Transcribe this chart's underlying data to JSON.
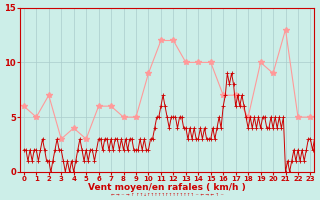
{
  "bg_color": "#cceee8",
  "grid_color": "#aacccc",
  "line_dark_color": "#cc0000",
  "line_light_color": "#ff9999",
  "ylim": [
    0,
    15
  ],
  "yticks": [
    0,
    5,
    10,
    15
  ],
  "xlabel": "Vent moyen/en rafales ( km/h )",
  "xlabel_color": "#cc0000",
  "tick_color": "#cc0000",
  "spine_color": "#cc0000",
  "hours_labels": [
    0,
    1,
    2,
    3,
    4,
    5,
    6,
    7,
    8,
    9,
    10,
    11,
    12,
    13,
    14,
    15,
    16,
    17,
    18,
    19,
    20,
    21,
    22,
    23
  ],
  "rafales_x": [
    0,
    1,
    2,
    3,
    4,
    5,
    6,
    7,
    8,
    9,
    10,
    11,
    12,
    13,
    14,
    15,
    16,
    17,
    18,
    19,
    20,
    21,
    22,
    23
  ],
  "rafales_y": [
    6,
    5,
    7,
    3,
    4,
    3,
    6,
    6,
    5,
    5,
    9,
    12,
    12,
    10,
    10,
    10,
    7,
    7,
    5,
    10,
    9,
    13,
    5,
    5
  ],
  "moyen_x": [
    0.0,
    0.17,
    0.33,
    0.5,
    0.67,
    0.83,
    1.0,
    1.17,
    1.33,
    1.5,
    1.67,
    1.83,
    2.0,
    2.17,
    2.33,
    2.5,
    2.67,
    2.83,
    3.0,
    3.17,
    3.33,
    3.5,
    3.67,
    3.83,
    4.0,
    4.17,
    4.33,
    4.5,
    4.67,
    4.83,
    5.0,
    5.17,
    5.33,
    5.5,
    5.67,
    5.83,
    6.0,
    6.17,
    6.33,
    6.5,
    6.67,
    6.83,
    7.0,
    7.17,
    7.33,
    7.5,
    7.67,
    7.83,
    8.0,
    8.17,
    8.33,
    8.5,
    8.67,
    8.83,
    9.0,
    9.17,
    9.33,
    9.5,
    9.67,
    9.83,
    10.0,
    10.17,
    10.33,
    10.5,
    10.67,
    10.83,
    11.0,
    11.17,
    11.33,
    11.5,
    11.67,
    11.83,
    12.0,
    12.17,
    12.33,
    12.5,
    12.67,
    12.83,
    13.0,
    13.17,
    13.33,
    13.5,
    13.67,
    13.83,
    14.0,
    14.17,
    14.33,
    14.5,
    14.67,
    14.83,
    15.0,
    15.17,
    15.33,
    15.5,
    15.67,
    15.83,
    16.0,
    16.17,
    16.33,
    16.5,
    16.67,
    16.83,
    17.0,
    17.17,
    17.33,
    17.5,
    17.67,
    17.83,
    18.0,
    18.17,
    18.33,
    18.5,
    18.67,
    18.83,
    19.0,
    19.17,
    19.33,
    19.5,
    19.67,
    19.83,
    20.0,
    20.17,
    20.33,
    20.5,
    20.67,
    20.83,
    21.0,
    21.17,
    21.33,
    21.5,
    21.67,
    21.83,
    22.0,
    22.17,
    22.33,
    22.5,
    22.67,
    22.83,
    23.0,
    23.17,
    23.33,
    23.5,
    23.67,
    23.83
  ],
  "moyen_y": [
    2,
    2,
    1,
    2,
    1,
    2,
    2,
    1,
    2,
    3,
    2,
    1,
    1,
    0,
    1,
    2,
    3,
    2,
    2,
    1,
    0,
    1,
    0,
    1,
    0,
    1,
    2,
    3,
    2,
    1,
    2,
    1,
    2,
    2,
    1,
    2,
    3,
    3,
    2,
    3,
    3,
    2,
    3,
    2,
    3,
    3,
    2,
    3,
    2,
    3,
    2,
    3,
    3,
    2,
    2,
    2,
    3,
    2,
    3,
    2,
    2,
    3,
    3,
    4,
    5,
    5,
    6,
    7,
    6,
    5,
    4,
    5,
    5,
    5,
    4,
    5,
    5,
    4,
    4,
    3,
    4,
    3,
    4,
    3,
    3,
    4,
    3,
    4,
    3,
    3,
    3,
    4,
    3,
    4,
    5,
    4,
    6,
    7,
    9,
    8,
    9,
    8,
    6,
    7,
    6,
    7,
    6,
    5,
    4,
    5,
    4,
    5,
    4,
    5,
    4,
    5,
    5,
    4,
    4,
    5,
    4,
    5,
    4,
    5,
    4,
    5,
    0,
    1,
    0,
    1,
    2,
    1,
    2,
    1,
    2,
    1,
    2,
    3,
    3,
    2,
    3,
    2,
    3,
    2
  ]
}
